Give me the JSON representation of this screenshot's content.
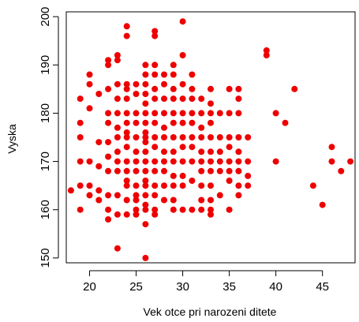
{
  "chart_data": {
    "type": "scatter",
    "title": "",
    "xlabel": "Vek otce pri narozeni ditete",
    "ylabel": "Vyska",
    "xlim": [
      17.5,
      48.5
    ],
    "ylim": [
      149,
      201
    ],
    "x_ticks": [
      20,
      25,
      30,
      35,
      40,
      45
    ],
    "x_tick_labels": [
      "20",
      "25",
      "30",
      "35",
      "40",
      "45"
    ],
    "y_ticks": [
      150,
      160,
      170,
      180,
      190,
      200
    ],
    "y_tick_labels": [
      "150",
      "160",
      "170",
      "180",
      "190",
      "200"
    ],
    "grid": false,
    "legend": "none",
    "marker_color": "#ee0000",
    "points": [
      [
        18,
        164
      ],
      [
        19,
        183
      ],
      [
        19,
        178
      ],
      [
        19,
        175
      ],
      [
        19,
        170
      ],
      [
        19,
        165
      ],
      [
        19,
        160
      ],
      [
        20,
        188
      ],
      [
        20,
        186
      ],
      [
        20,
        181
      ],
      [
        20,
        170
      ],
      [
        20,
        165
      ],
      [
        20,
        163
      ],
      [
        21,
        184
      ],
      [
        21,
        174
      ],
      [
        21,
        169
      ],
      [
        21,
        164
      ],
      [
        21,
        162
      ],
      [
        22,
        191
      ],
      [
        22,
        190
      ],
      [
        22,
        185
      ],
      [
        22,
        180
      ],
      [
        22,
        178
      ],
      [
        22,
        174
      ],
      [
        22,
        171
      ],
      [
        22,
        168
      ],
      [
        22,
        163
      ],
      [
        22,
        160
      ],
      [
        22,
        158
      ],
      [
        23,
        192
      ],
      [
        23,
        191
      ],
      [
        23,
        186
      ],
      [
        23,
        183
      ],
      [
        23,
        180
      ],
      [
        23,
        177
      ],
      [
        23,
        175
      ],
      [
        23,
        172
      ],
      [
        23,
        170
      ],
      [
        23,
        168
      ],
      [
        23,
        163
      ],
      [
        23,
        159
      ],
      [
        23,
        152
      ],
      [
        24,
        198
      ],
      [
        24,
        196
      ],
      [
        24,
        186
      ],
      [
        24,
        185
      ],
      [
        24,
        183
      ],
      [
        24,
        180
      ],
      [
        24,
        178
      ],
      [
        24,
        176
      ],
      [
        24,
        175
      ],
      [
        24,
        173
      ],
      [
        24,
        170
      ],
      [
        24,
        168
      ],
      [
        24,
        166
      ],
      [
        24,
        165
      ],
      [
        24,
        162
      ],
      [
        24,
        159
      ],
      [
        25,
        186
      ],
      [
        25,
        184
      ],
      [
        25,
        180
      ],
      [
        25,
        178
      ],
      [
        25,
        175
      ],
      [
        25,
        172
      ],
      [
        25,
        170
      ],
      [
        25,
        168
      ],
      [
        25,
        165
      ],
      [
        25,
        163
      ],
      [
        25,
        162
      ],
      [
        25,
        160
      ],
      [
        25,
        159
      ],
      [
        26,
        190
      ],
      [
        26,
        188
      ],
      [
        26,
        186
      ],
      [
        26,
        184
      ],
      [
        26,
        182
      ],
      [
        26,
        180
      ],
      [
        26,
        178
      ],
      [
        26,
        176
      ],
      [
        26,
        175
      ],
      [
        26,
        174
      ],
      [
        26,
        172
      ],
      [
        26,
        170
      ],
      [
        26,
        168
      ],
      [
        26,
        166
      ],
      [
        26,
        165
      ],
      [
        26,
        163
      ],
      [
        26,
        161
      ],
      [
        26,
        160
      ],
      [
        26,
        157
      ],
      [
        26,
        150
      ],
      [
        27,
        197
      ],
      [
        27,
        196
      ],
      [
        27,
        190
      ],
      [
        27,
        188
      ],
      [
        27,
        185
      ],
      [
        27,
        183
      ],
      [
        27,
        180
      ],
      [
        27,
        178
      ],
      [
        27,
        175
      ],
      [
        27,
        173
      ],
      [
        27,
        170
      ],
      [
        27,
        168
      ],
      [
        27,
        165
      ],
      [
        27,
        163
      ],
      [
        27,
        160
      ],
      [
        27,
        159
      ],
      [
        28,
        188
      ],
      [
        28,
        186
      ],
      [
        28,
        183
      ],
      [
        28,
        180
      ],
      [
        28,
        177
      ],
      [
        28,
        175
      ],
      [
        28,
        172
      ],
      [
        28,
        170
      ],
      [
        28,
        168
      ],
      [
        28,
        165
      ],
      [
        28,
        162
      ],
      [
        29,
        190
      ],
      [
        29,
        188
      ],
      [
        29,
        185
      ],
      [
        29,
        183
      ],
      [
        29,
        180
      ],
      [
        29,
        178
      ],
      [
        29,
        175
      ],
      [
        29,
        172
      ],
      [
        29,
        170
      ],
      [
        29,
        167
      ],
      [
        29,
        165
      ],
      [
        29,
        162
      ],
      [
        29,
        160
      ],
      [
        30,
        199
      ],
      [
        30,
        192
      ],
      [
        30,
        186
      ],
      [
        30,
        183
      ],
      [
        30,
        180
      ],
      [
        30,
        178
      ],
      [
        30,
        175
      ],
      [
        30,
        173
      ],
      [
        30,
        170
      ],
      [
        30,
        167
      ],
      [
        30,
        165
      ],
      [
        30,
        160
      ],
      [
        31,
        188
      ],
      [
        31,
        185
      ],
      [
        31,
        183
      ],
      [
        31,
        180
      ],
      [
        31,
        178
      ],
      [
        31,
        175
      ],
      [
        31,
        173
      ],
      [
        31,
        170
      ],
      [
        31,
        166
      ],
      [
        31,
        160
      ],
      [
        32,
        183
      ],
      [
        32,
        180
      ],
      [
        32,
        177
      ],
      [
        32,
        175
      ],
      [
        32,
        172
      ],
      [
        32,
        170
      ],
      [
        32,
        168
      ],
      [
        32,
        165
      ],
      [
        32,
        162
      ],
      [
        32,
        160
      ],
      [
        33,
        185
      ],
      [
        33,
        182
      ],
      [
        33,
        180
      ],
      [
        33,
        178
      ],
      [
        33,
        175
      ],
      [
        33,
        172
      ],
      [
        33,
        170
      ],
      [
        33,
        168
      ],
      [
        33,
        165
      ],
      [
        33,
        162
      ],
      [
        33,
        160
      ],
      [
        33,
        159
      ],
      [
        34,
        180
      ],
      [
        34,
        175
      ],
      [
        34,
        172
      ],
      [
        34,
        170
      ],
      [
        34,
        168
      ],
      [
        34,
        163
      ],
      [
        35,
        185
      ],
      [
        35,
        180
      ],
      [
        35,
        175
      ],
      [
        35,
        173
      ],
      [
        35,
        170
      ],
      [
        35,
        168
      ],
      [
        35,
        166
      ],
      [
        35,
        160
      ],
      [
        36,
        185
      ],
      [
        36,
        183
      ],
      [
        36,
        180
      ],
      [
        36,
        175
      ],
      [
        36,
        172
      ],
      [
        36,
        170
      ],
      [
        36,
        168
      ],
      [
        36,
        165
      ],
      [
        36,
        163
      ],
      [
        37,
        175
      ],
      [
        37,
        170
      ],
      [
        37,
        167
      ],
      [
        37,
        165
      ],
      [
        39,
        193
      ],
      [
        39,
        192
      ],
      [
        40,
        180
      ],
      [
        40,
        170
      ],
      [
        41,
        178
      ],
      [
        42,
        185
      ],
      [
        44,
        165
      ],
      [
        45,
        161
      ],
      [
        46,
        173
      ],
      [
        46,
        170
      ],
      [
        47,
        168
      ],
      [
        48,
        170
      ]
    ]
  }
}
